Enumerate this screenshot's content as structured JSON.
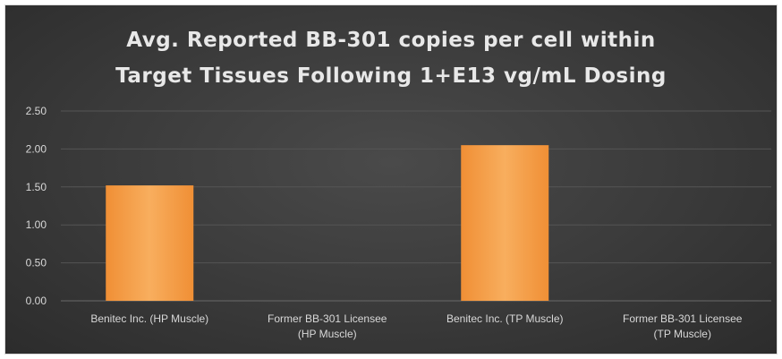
{
  "chart_data": {
    "type": "bar",
    "title": "Avg. Reported BB-301 copies per cell within Target Tissues Following 1+E13 vg/mL Dosing",
    "title_lines": [
      "Avg. Reported BB-301 copies per cell within",
      "Target Tissues Following 1+E13 vg/mL Dosing"
    ],
    "xlabel": "",
    "ylabel": "",
    "ylim": [
      0,
      2.5
    ],
    "yticks": [
      "0.00",
      "0.50",
      "1.00",
      "1.50",
      "2.00",
      "2.50"
    ],
    "grid": true,
    "categories": [
      [
        "Benitec Inc. (HP Muscle)"
      ],
      [
        "Former BB-301 Licensee",
        "(HP Muscle)"
      ],
      [
        "Benitec Inc. (TP Muscle)"
      ],
      [
        "Former BB-301 Licensee",
        "(TP Muscle)"
      ]
    ],
    "values": [
      1.52,
      0,
      2.05,
      0
    ],
    "bar_color": "#f4a04a",
    "background_color": "#3c3c3c",
    "text_color": "#e8e8e8"
  }
}
